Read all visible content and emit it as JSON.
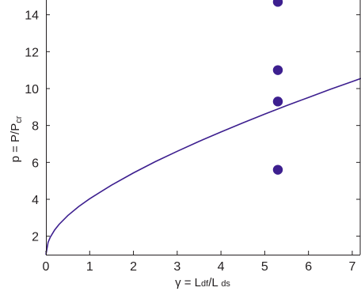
{
  "chart_data": {
    "type": "scatter",
    "title": "",
    "xlabel": {
      "prefix": "γ = L",
      "sub1": "df",
      "mid": "/L ",
      "sub2": "ds"
    },
    "ylabel": {
      "prefix": "p = P/P",
      "sub": "cr"
    },
    "xlim": [
      0,
      7.2
    ],
    "ylim": [
      1,
      14.8
    ],
    "xticks": [
      0,
      1,
      2,
      3,
      4,
      5,
      6,
      7
    ],
    "yticks": [
      2,
      4,
      6,
      8,
      10,
      12,
      14
    ],
    "grid": false,
    "series": [
      {
        "kind": "line",
        "color": "#3d1f8f",
        "x": [
          0,
          0.05,
          0.1,
          0.2,
          0.3,
          0.5,
          0.75,
          1,
          1.5,
          2,
          2.5,
          3,
          3.5,
          4,
          4.5,
          5,
          5.5,
          6,
          6.5,
          7,
          7.2
        ],
        "y": [
          1.0,
          1.67,
          1.95,
          2.34,
          2.64,
          3.12,
          3.61,
          4.03,
          4.77,
          5.43,
          6.04,
          6.6,
          7.14,
          7.65,
          8.14,
          8.62,
          9.08,
          9.52,
          9.96,
          10.38,
          10.55
        ]
      },
      {
        "kind": "scatter",
        "color": "#3d1f8f",
        "x": [
          5.3,
          5.3,
          5.3,
          5.3
        ],
        "y": [
          14.7,
          11.0,
          9.3,
          5.6
        ]
      }
    ]
  }
}
